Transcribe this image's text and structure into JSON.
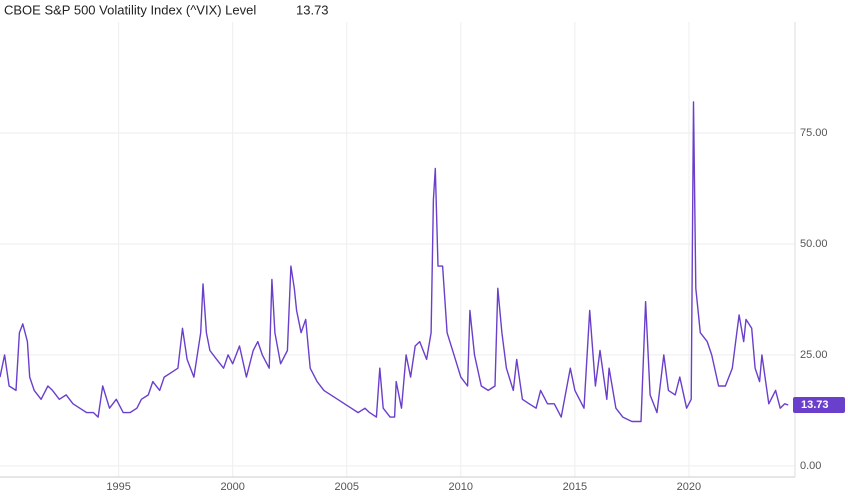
{
  "chart_data": {
    "type": "line",
    "title": "CBOE S&P 500 Volatility Index (^VIX) Level",
    "current_value": 13.73,
    "grid": true,
    "xlim": [
      1989.8,
      2024.65
    ],
    "xticks": [
      1995,
      2000,
      2005,
      2010,
      2015,
      2020
    ],
    "ylim": [
      -2.5,
      100
    ],
    "yticks": [
      {
        "value": 0,
        "label": "0.00"
      },
      {
        "value": 25,
        "label": "25.00"
      },
      {
        "value": 50,
        "label": "50.00"
      },
      {
        "value": 75,
        "label": "75.00"
      }
    ],
    "x": [
      1989.8,
      1990.0,
      1990.2,
      1990.5,
      1990.65,
      1990.8,
      1991.0,
      1991.1,
      1991.3,
      1991.6,
      1991.9,
      1992.1,
      1992.4,
      1992.7,
      1993.0,
      1993.3,
      1993.6,
      1993.9,
      1994.1,
      1994.3,
      1994.6,
      1994.9,
      1995.2,
      1995.5,
      1995.8,
      1996.0,
      1996.3,
      1996.5,
      1996.8,
      1997.0,
      1997.3,
      1997.6,
      1997.8,
      1998.0,
      1998.3,
      1998.6,
      1998.7,
      1998.85,
      1999.0,
      1999.3,
      1999.6,
      1999.8,
      2000.0,
      2000.3,
      2000.6,
      2000.9,
      2001.1,
      2001.3,
      2001.6,
      2001.72,
      2001.85,
      2002.1,
      2002.4,
      2002.55,
      2002.7,
      2002.8,
      2003.0,
      2003.2,
      2003.4,
      2003.7,
      2004.0,
      2004.3,
      2004.6,
      2004.9,
      2005.2,
      2005.5,
      2005.8,
      2006.0,
      2006.3,
      2006.45,
      2006.6,
      2006.9,
      2007.1,
      2007.17,
      2007.4,
      2007.6,
      2007.8,
      2008.0,
      2008.2,
      2008.5,
      2008.7,
      2008.8,
      2008.88,
      2009.0,
      2009.2,
      2009.4,
      2009.7,
      2010.0,
      2010.3,
      2010.4,
      2010.6,
      2010.9,
      2011.2,
      2011.5,
      2011.62,
      2011.8,
      2012.0,
      2012.3,
      2012.45,
      2012.7,
      2013.0,
      2013.3,
      2013.5,
      2013.8,
      2014.1,
      2014.4,
      2014.8,
      2015.0,
      2015.4,
      2015.65,
      2015.9,
      2016.1,
      2016.4,
      2016.5,
      2016.8,
      2017.1,
      2017.5,
      2017.9,
      2018.1,
      2018.3,
      2018.6,
      2018.9,
      2019.1,
      2019.4,
      2019.6,
      2019.9,
      2020.1,
      2020.2,
      2020.3,
      2020.5,
      2020.8,
      2021.0,
      2021.3,
      2021.6,
      2021.9,
      2022.1,
      2022.2,
      2022.4,
      2022.5,
      2022.75,
      2022.9,
      2023.1,
      2023.2,
      2023.5,
      2023.8,
      2024.0,
      2024.2,
      2024.35
    ],
    "series": [
      {
        "name": "VIX",
        "color": "#6a3fcb",
        "values": [
          20,
          25,
          18,
          17,
          30,
          32,
          28,
          20,
          17,
          15,
          18,
          17,
          15,
          16,
          14,
          13,
          12,
          12,
          11,
          18,
          13,
          15,
          12,
          12,
          13,
          15,
          16,
          19,
          17,
          20,
          21,
          22,
          31,
          24,
          20,
          30,
          41,
          30,
          26,
          24,
          22,
          25,
          23,
          27,
          20,
          26,
          28,
          25,
          22,
          42,
          30,
          23,
          26,
          45,
          40,
          35,
          30,
          33,
          22,
          19,
          17,
          16,
          15,
          14,
          13,
          12,
          13,
          12,
          11,
          22,
          13,
          11,
          11,
          19,
          13,
          25,
          20,
          27,
          28,
          24,
          30,
          60,
          67,
          45,
          45,
          30,
          25,
          20,
          18,
          35,
          25,
          18,
          17,
          18,
          40,
          30,
          22,
          17,
          24,
          15,
          14,
          13,
          17,
          14,
          14,
          11,
          22,
          17,
          13,
          35,
          18,
          26,
          15,
          22,
          13,
          11,
          10,
          10,
          37,
          16,
          12,
          25,
          17,
          16,
          20,
          13,
          15,
          82,
          40,
          30,
          28,
          25,
          18,
          18,
          22,
          30,
          34,
          28,
          33,
          31,
          22,
          19,
          25,
          14,
          17,
          13,
          14,
          13.73
        ]
      }
    ]
  }
}
